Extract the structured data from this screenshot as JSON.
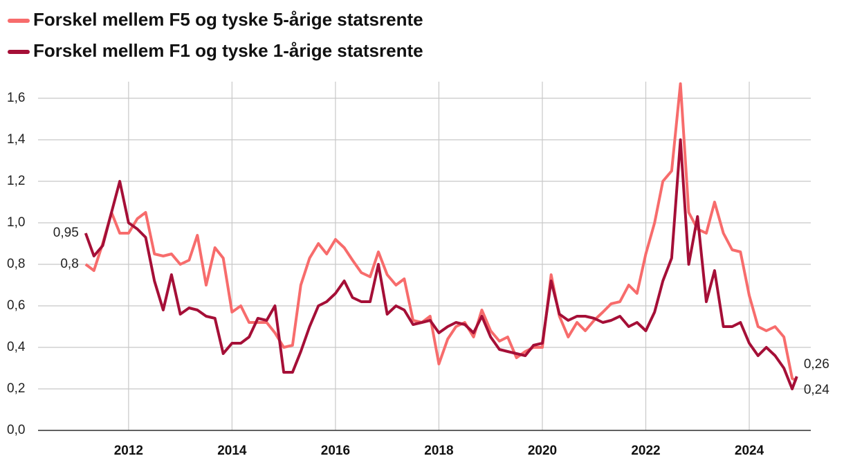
{
  "chart_data": {
    "type": "line",
    "x": [
      2011.17,
      2011.33,
      2011.5,
      2011.67,
      2011.83,
      2012,
      2012.17,
      2012.33,
      2012.5,
      2012.67,
      2012.83,
      2013,
      2013.17,
      2013.33,
      2013.5,
      2013.67,
      2013.83,
      2014,
      2014.17,
      2014.33,
      2014.5,
      2014.67,
      2014.83,
      2015,
      2015.17,
      2015.33,
      2015.5,
      2015.67,
      2015.83,
      2016,
      2016.17,
      2016.33,
      2016.5,
      2016.67,
      2016.83,
      2017,
      2017.17,
      2017.33,
      2017.5,
      2017.67,
      2017.83,
      2018,
      2018.17,
      2018.33,
      2018.5,
      2018.67,
      2018.83,
      2019,
      2019.17,
      2019.33,
      2019.5,
      2019.67,
      2019.83,
      2020,
      2020.17,
      2020.33,
      2020.5,
      2020.67,
      2020.83,
      2021,
      2021.17,
      2021.33,
      2021.5,
      2021.67,
      2021.83,
      2022,
      2022.17,
      2022.33,
      2022.5,
      2022.67,
      2022.83,
      2023,
      2023.17,
      2023.33,
      2023.5,
      2023.67,
      2023.83,
      2024,
      2024.17,
      2024.33,
      2024.5,
      2024.67,
      2024.83,
      2024.92
    ],
    "series": [
      {
        "name": "Forskel mellem F5 og tyske 5-årige statsrente",
        "color": "#f76c6c",
        "values": [
          0.8,
          0.77,
          0.9,
          1.05,
          0.95,
          0.95,
          1.02,
          1.05,
          0.85,
          0.84,
          0.85,
          0.8,
          0.82,
          0.94,
          0.7,
          0.88,
          0.83,
          0.57,
          0.6,
          0.52,
          0.52,
          0.52,
          0.47,
          0.4,
          0.41,
          0.7,
          0.83,
          0.9,
          0.85,
          0.92,
          0.88,
          0.82,
          0.76,
          0.74,
          0.86,
          0.75,
          0.7,
          0.73,
          0.53,
          0.52,
          0.55,
          0.32,
          0.44,
          0.5,
          0.52,
          0.45,
          0.58,
          0.48,
          0.43,
          0.45,
          0.35,
          0.38,
          0.4,
          0.4,
          0.75,
          0.55,
          0.45,
          0.52,
          0.48,
          0.53,
          0.57,
          0.61,
          0.62,
          0.7,
          0.66,
          0.85,
          1.0,
          1.2,
          1.25,
          1.67,
          1.05,
          0.97,
          0.95,
          1.1,
          0.95,
          0.87,
          0.86,
          0.65,
          0.5,
          0.48,
          0.5,
          0.45,
          0.25,
          0.24
        ],
        "value_labels": [
          "0,8",
          null,
          null,
          null,
          null,
          null,
          null,
          null,
          null,
          null,
          null,
          null,
          null,
          null,
          null,
          null,
          null,
          null,
          null,
          null,
          null,
          null,
          null,
          null,
          null,
          null,
          null,
          null,
          null,
          null,
          null,
          null,
          null,
          null,
          null,
          null,
          null,
          null,
          null,
          null,
          null,
          null,
          null,
          null,
          null,
          null,
          null,
          null,
          null,
          null,
          null,
          null,
          null,
          null,
          null,
          null,
          null,
          null,
          null,
          null,
          null,
          null,
          null,
          null,
          null,
          null,
          null,
          null,
          null,
          null,
          null,
          null,
          null,
          null,
          null,
          null,
          null,
          null,
          null,
          null,
          null,
          null,
          null,
          "0,24"
        ]
      },
      {
        "name": "Forskel mellem F1 og tyske 1-årige statsrente",
        "color": "#a50f37",
        "values": [
          0.95,
          0.84,
          0.89,
          1.05,
          1.2,
          1.0,
          0.97,
          0.93,
          0.72,
          0.58,
          0.75,
          0.56,
          0.59,
          0.58,
          0.55,
          0.54,
          0.37,
          0.42,
          0.42,
          0.45,
          0.54,
          0.53,
          0.6,
          0.28,
          0.28,
          0.38,
          0.5,
          0.6,
          0.62,
          0.66,
          0.72,
          0.64,
          0.62,
          0.62,
          0.8,
          0.56,
          0.6,
          0.58,
          0.51,
          0.52,
          0.53,
          0.47,
          0.5,
          0.52,
          0.51,
          0.47,
          0.55,
          0.45,
          0.39,
          0.38,
          0.37,
          0.36,
          0.41,
          0.42,
          0.72,
          0.56,
          0.53,
          0.55,
          0.55,
          0.54,
          0.52,
          0.53,
          0.55,
          0.5,
          0.52,
          0.48,
          0.57,
          0.72,
          0.83,
          1.4,
          0.8,
          1.03,
          0.62,
          0.77,
          0.5,
          0.5,
          0.52,
          0.42,
          0.36,
          0.4,
          0.36,
          0.3,
          0.2,
          0.26
        ],
        "value_labels": [
          "0,95",
          null,
          null,
          null,
          null,
          null,
          null,
          null,
          null,
          null,
          null,
          null,
          null,
          null,
          null,
          null,
          null,
          null,
          null,
          null,
          null,
          null,
          null,
          null,
          null,
          null,
          null,
          null,
          null,
          null,
          null,
          null,
          null,
          null,
          null,
          null,
          null,
          null,
          null,
          null,
          null,
          null,
          null,
          null,
          null,
          null,
          null,
          null,
          null,
          null,
          null,
          null,
          null,
          null,
          null,
          null,
          null,
          null,
          null,
          null,
          null,
          null,
          null,
          null,
          null,
          null,
          null,
          null,
          null,
          null,
          null,
          null,
          null,
          null,
          null,
          null,
          null,
          null,
          null,
          null,
          null,
          null,
          null,
          "0,26"
        ]
      }
    ],
    "xlim": [
      2010.25,
      2025.19
    ],
    "xticks": [
      2012,
      2014,
      2016,
      2018,
      2020,
      2022,
      2024
    ],
    "ylim": [
      0,
      1.68
    ],
    "yticks": [
      {
        "value": 0,
        "label": "0,0"
      },
      {
        "value": 0.2,
        "label": "0,2"
      },
      {
        "value": 0.4,
        "label": "0,4"
      },
      {
        "value": 0.6,
        "label": "0,6"
      },
      {
        "value": 0.8,
        "label": "0,8"
      },
      {
        "value": 1.0,
        "label": "1,0"
      },
      {
        "value": 1.2,
        "label": "1,2"
      },
      {
        "value": 1.4,
        "label": "1,4"
      },
      {
        "value": 1.6,
        "label": "1,6"
      }
    ],
    "grid": true
  }
}
